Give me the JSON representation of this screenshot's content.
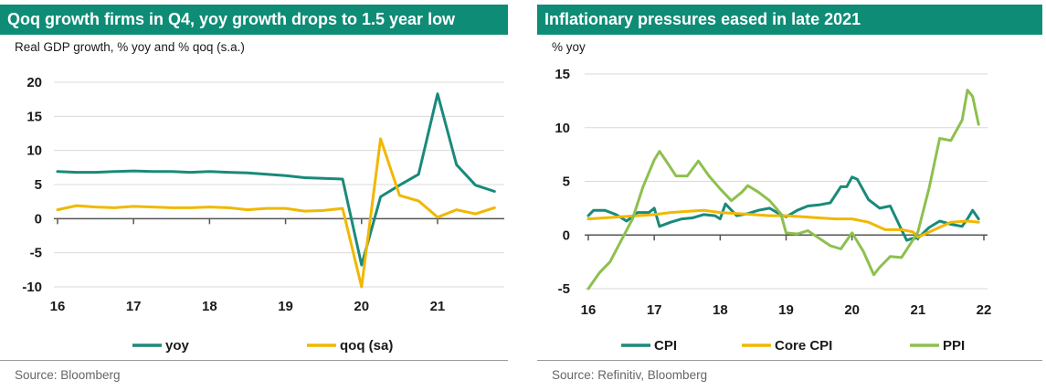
{
  "colors": {
    "teal": "#1a8a7a",
    "yellow": "#f0b800",
    "green": "#8dc04f",
    "header": "#0e8c76",
    "zero_line": "#555555"
  },
  "left": {
    "title": "Qoq growth firms in Q4, yoy growth drops to 1.5 year low",
    "subtitle": "Real GDP growth, % yoy and % qoq (s.a.)",
    "source": "Source: Bloomberg",
    "legend": [
      "yoy",
      "qoq (sa)"
    ]
  },
  "right": {
    "title": "Inflationary pressures eased in late 2021",
    "subtitle": "% yoy",
    "source": "Source: Refinitiv, Bloomberg",
    "legend": [
      "CPI",
      "Core CPI",
      "PPI"
    ]
  },
  "chart_data": [
    {
      "type": "line",
      "title": "Qoq growth firms in Q4, yoy growth drops to 1.5 year low",
      "ylabel": "Real GDP growth, % yoy and % qoq (s.a.)",
      "xlim": [
        2016,
        2021.83
      ],
      "ylim": [
        -10,
        20
      ],
      "xticks": [
        {
          "v": 2016,
          "label": "16"
        },
        {
          "v": 2017,
          "label": "17"
        },
        {
          "v": 2018,
          "label": "18"
        },
        {
          "v": 2019,
          "label": "19"
        },
        {
          "v": 2020,
          "label": "20"
        },
        {
          "v": 2021,
          "label": "21"
        }
      ],
      "yticks": [
        -10,
        -5,
        0,
        5,
        10,
        15,
        20
      ],
      "grid": true,
      "legend_position": "bottom",
      "x": [
        2016.0,
        2016.25,
        2016.5,
        2016.75,
        2017.0,
        2017.25,
        2017.5,
        2017.75,
        2018.0,
        2018.25,
        2018.5,
        2018.75,
        2019.0,
        2019.25,
        2019.5,
        2019.75,
        2020.0,
        2020.25,
        2020.5,
        2020.75,
        2021.0,
        2021.25,
        2021.5,
        2021.75
      ],
      "series": [
        {
          "name": "yoy",
          "color": "#1a8a7a",
          "values": [
            6.9,
            6.8,
            6.8,
            6.9,
            7.0,
            6.9,
            6.9,
            6.8,
            6.9,
            6.8,
            6.7,
            6.5,
            6.3,
            6.0,
            5.9,
            5.8,
            -6.8,
            3.2,
            4.9,
            6.5,
            18.3,
            7.9,
            4.9,
            4.0
          ]
        },
        {
          "name": "qoq (sa)",
          "color": "#f0b800",
          "values": [
            1.3,
            1.9,
            1.7,
            1.6,
            1.8,
            1.7,
            1.6,
            1.6,
            1.7,
            1.6,
            1.3,
            1.5,
            1.5,
            1.1,
            1.2,
            1.5,
            -10.0,
            11.7,
            3.4,
            2.6,
            0.2,
            1.3,
            0.7,
            1.6
          ]
        }
      ]
    },
    {
      "type": "line",
      "title": "Inflationary pressures eased in late 2021",
      "ylabel": "% yoy",
      "xlim": [
        2016,
        2022
      ],
      "ylim": [
        -5,
        15
      ],
      "xticks": [
        {
          "v": 2016,
          "label": "16"
        },
        {
          "v": 2017,
          "label": "17"
        },
        {
          "v": 2018,
          "label": "18"
        },
        {
          "v": 2019,
          "label": "19"
        },
        {
          "v": 2020,
          "label": "20"
        },
        {
          "v": 2021,
          "label": "21"
        },
        {
          "v": 2022,
          "label": "22"
        }
      ],
      "yticks": [
        -5,
        0,
        5,
        10,
        15
      ],
      "grid": true,
      "legend_position": "bottom",
      "series": [
        {
          "name": "CPI",
          "color": "#1a8a7a",
          "x": [
            2016.0,
            2016.08,
            2016.25,
            2016.42,
            2016.58,
            2016.75,
            2016.92,
            2017.0,
            2017.08,
            2017.25,
            2017.42,
            2017.58,
            2017.75,
            2017.92,
            2018.0,
            2018.08,
            2018.25,
            2018.42,
            2018.58,
            2018.75,
            2018.92,
            2019.0,
            2019.17,
            2019.33,
            2019.5,
            2019.67,
            2019.83,
            2019.92,
            2020.0,
            2020.08,
            2020.25,
            2020.42,
            2020.58,
            2020.75,
            2020.83,
            2020.92,
            2021.0,
            2021.17,
            2021.33,
            2021.5,
            2021.67,
            2021.75,
            2021.83,
            2021.92
          ],
          "values": [
            1.8,
            2.3,
            2.3,
            1.9,
            1.3,
            2.1,
            2.1,
            2.5,
            0.8,
            1.2,
            1.5,
            1.6,
            1.9,
            1.8,
            1.5,
            2.9,
            1.8,
            2.0,
            2.3,
            2.5,
            1.9,
            1.7,
            2.3,
            2.7,
            2.8,
            3.0,
            4.5,
            4.5,
            5.4,
            5.2,
            3.3,
            2.5,
            2.7,
            0.5,
            -0.5,
            -0.3,
            -0.3,
            0.7,
            1.3,
            1.0,
            0.8,
            1.5,
            2.3,
            1.5
          ]
        },
        {
          "name": "Core CPI",
          "color": "#f0b800",
          "x": [
            2016.0,
            2016.25,
            2016.5,
            2016.75,
            2017.0,
            2017.25,
            2017.5,
            2017.75,
            2018.0,
            2018.25,
            2018.5,
            2018.75,
            2019.0,
            2019.25,
            2019.5,
            2019.75,
            2020.0,
            2020.25,
            2020.5,
            2020.75,
            2020.92,
            2021.0,
            2021.25,
            2021.5,
            2021.75,
            2021.92
          ],
          "values": [
            1.5,
            1.6,
            1.7,
            1.8,
            1.9,
            2.1,
            2.2,
            2.3,
            2.1,
            2.0,
            1.9,
            1.8,
            1.8,
            1.7,
            1.6,
            1.5,
            1.5,
            1.2,
            0.5,
            0.5,
            0.3,
            -0.2,
            0.5,
            1.2,
            1.3,
            1.2
          ]
        },
        {
          "name": "PPI",
          "color": "#8dc04f",
          "x": [
            2016.0,
            2016.17,
            2016.33,
            2016.5,
            2016.67,
            2016.83,
            2017.0,
            2017.08,
            2017.17,
            2017.33,
            2017.5,
            2017.67,
            2017.83,
            2018.0,
            2018.17,
            2018.33,
            2018.42,
            2018.58,
            2018.75,
            2018.92,
            2019.0,
            2019.17,
            2019.33,
            2019.5,
            2019.67,
            2019.83,
            2019.92,
            2020.0,
            2020.17,
            2020.33,
            2020.42,
            2020.58,
            2020.75,
            2020.92,
            2021.0,
            2021.17,
            2021.33,
            2021.5,
            2021.67,
            2021.75,
            2021.83,
            2021.92
          ],
          "values": [
            -5.0,
            -3.5,
            -2.5,
            -0.5,
            1.5,
            4.5,
            7.0,
            7.8,
            7.0,
            5.5,
            5.5,
            6.9,
            5.5,
            4.3,
            3.2,
            4.0,
            4.6,
            4.0,
            3.2,
            2.0,
            0.2,
            0.1,
            0.4,
            -0.3,
            -1.0,
            -1.3,
            -0.5,
            0.2,
            -1.5,
            -3.7,
            -3.0,
            -2.0,
            -2.1,
            -0.5,
            0.3,
            4.4,
            9.0,
            8.8,
            10.7,
            13.5,
            12.9,
            10.3
          ]
        }
      ]
    }
  ]
}
